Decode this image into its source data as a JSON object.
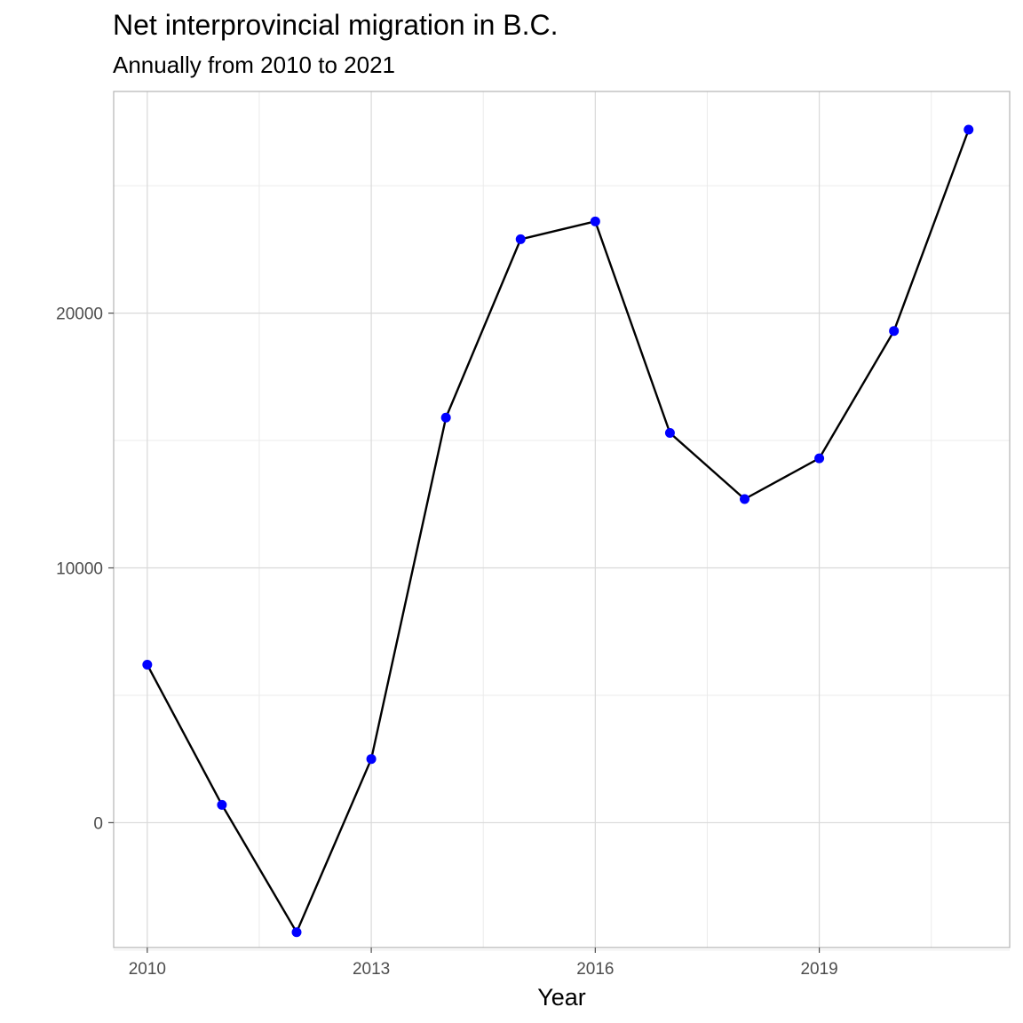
{
  "chart_data": {
    "type": "line",
    "title": "Net interprovincial migration in B.C.",
    "subtitle": "Annually from 2010 to 2021",
    "xlabel": "Year",
    "ylabel": "",
    "xlim": [
      2009.55,
      2021.55
    ],
    "ylim": [
      -4900,
      28700
    ],
    "x_ticks": [
      2010,
      2013,
      2016,
      2019
    ],
    "x_minor_ticks": [
      2011.5,
      2014.5,
      2017.5,
      2020.5
    ],
    "y_ticks": [
      0,
      10000,
      20000
    ],
    "y_minor_ticks": [
      -5000,
      5000,
      15000,
      25000
    ],
    "grid": true,
    "legend": "none",
    "line_color": "#000000",
    "point_color": "#0000ff",
    "series": [
      {
        "x": [
          2010,
          2011,
          2012,
          2013,
          2014,
          2015,
          2016,
          2017,
          2018,
          2019,
          2020,
          2021
        ],
        "y": [
          6200,
          700,
          -4300,
          2500,
          15900,
          22900,
          23600,
          15300,
          12700,
          14300,
          19300,
          27200
        ]
      }
    ]
  }
}
